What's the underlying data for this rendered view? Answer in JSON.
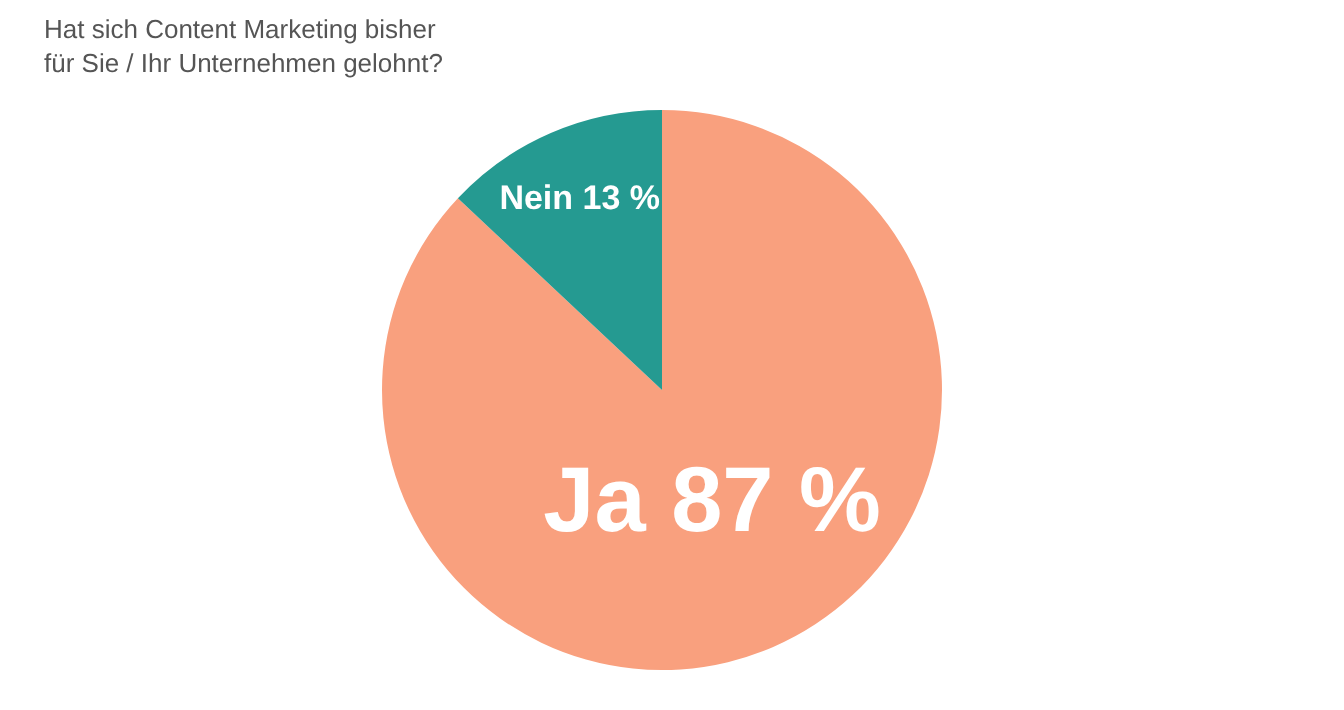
{
  "chart_data": {
    "type": "pie",
    "title": "Hat sich Content Marketing bisher für Sie / Ihr Unternehmen gelohnt?",
    "categories": [
      "Ja",
      "Nein"
    ],
    "values": [
      87,
      13
    ],
    "colors": [
      "#f9a07e",
      "#259a91"
    ],
    "value_labels": [
      "87 %",
      "13 %"
    ],
    "legend": false
  }
}
